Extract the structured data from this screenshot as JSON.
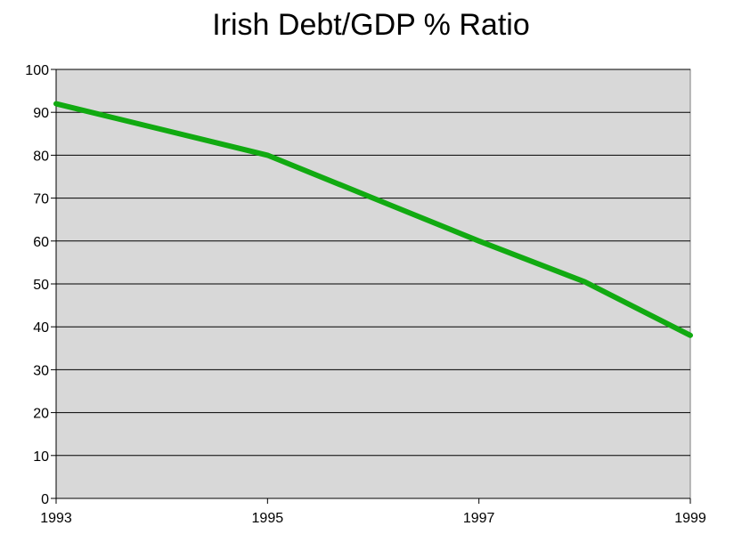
{
  "chart_data": {
    "type": "line",
    "title": "Irish Debt/GDP % Ratio",
    "xlabel": "",
    "ylabel": "",
    "x": [
      1993,
      1994,
      1995,
      1996,
      1997,
      1998,
      1999
    ],
    "series": [
      {
        "values": [
          92,
          86,
          80,
          70,
          60,
          50.5,
          38
        ]
      }
    ],
    "xlim": [
      1993,
      1999
    ],
    "ylim": [
      0,
      100
    ],
    "x_ticks": [
      "1993",
      "1995",
      "1997",
      "1999"
    ],
    "y_ticks": [
      "0",
      "10",
      "20",
      "30",
      "40",
      "50",
      "60",
      "70",
      "80",
      "90",
      "100"
    ],
    "grid": true,
    "legend": "none",
    "line_color": "#11aa11",
    "plot_background": "#d8d8d8"
  }
}
